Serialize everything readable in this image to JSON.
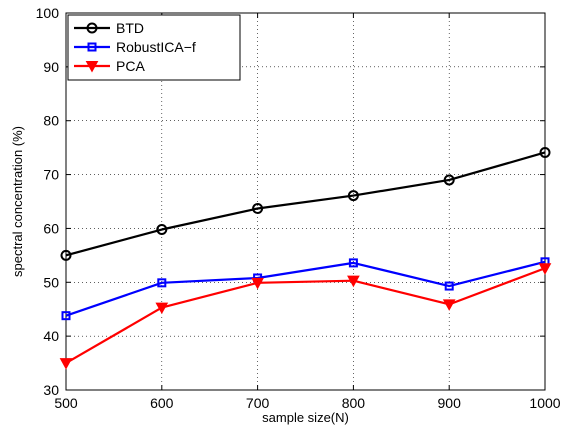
{
  "chart_data": {
    "type": "line",
    "title": "",
    "xlabel": "sample size(N)",
    "ylabel": "spectral concentration (%)",
    "x": [
      500,
      600,
      700,
      800,
      900,
      1000
    ],
    "xlim": [
      500,
      1000
    ],
    "ylim": [
      30,
      100
    ],
    "xticks": [
      "500",
      "600",
      "700",
      "800",
      "900",
      "1000"
    ],
    "yticks": [
      "30",
      "40",
      "50",
      "60",
      "70",
      "80",
      "90",
      "100"
    ],
    "grid": true,
    "legend_position": "top-left",
    "series": [
      {
        "name": "BTD",
        "values": [
          55,
          59.8,
          63.7,
          66.1,
          69,
          74.1
        ],
        "color": "#000000",
        "marker": "circle"
      },
      {
        "name": "RobustICA−f",
        "values": [
          43.8,
          49.9,
          50.8,
          53.6,
          49.3,
          53.8
        ],
        "color": "#0000ff",
        "marker": "square"
      },
      {
        "name": "PCA",
        "values": [
          35,
          45.3,
          49.9,
          50.3,
          45.9,
          52.6
        ],
        "color": "#ff0000",
        "marker": "triangle-down"
      }
    ]
  }
}
